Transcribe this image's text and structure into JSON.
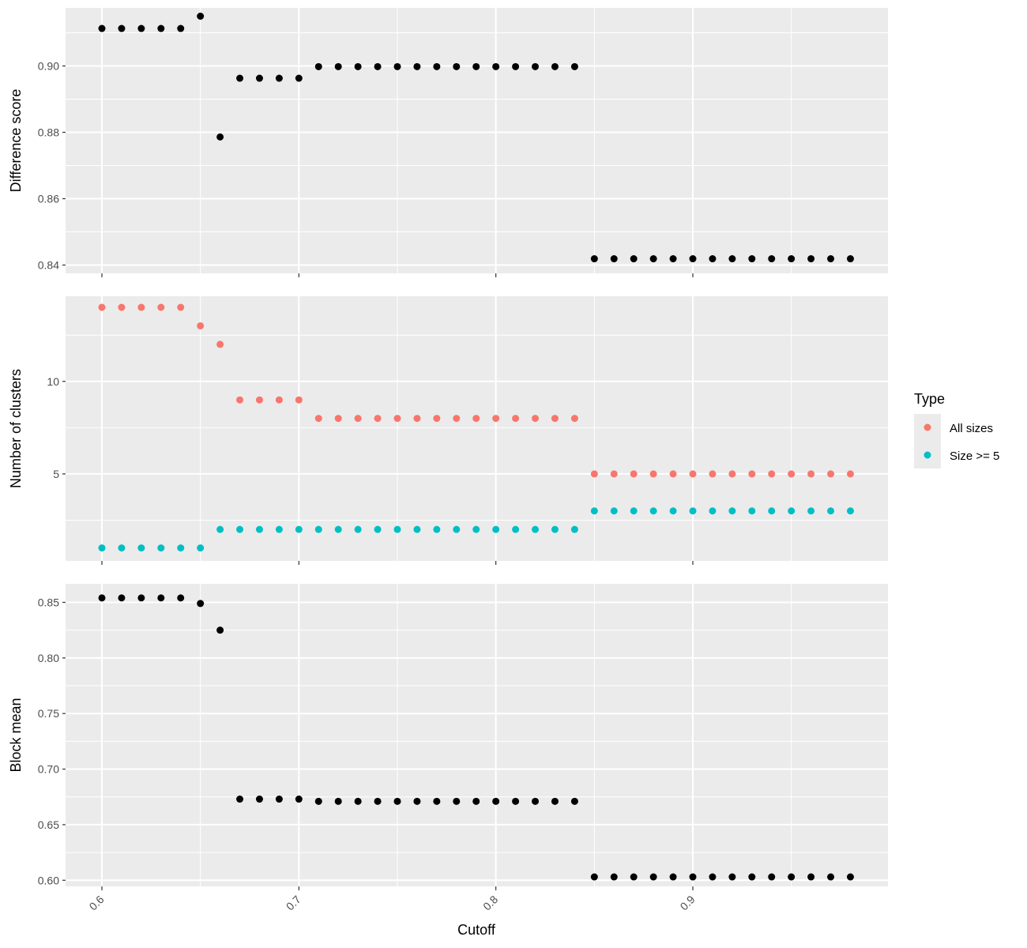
{
  "chart_data": [
    {
      "type": "scatter",
      "panel": "top",
      "ylabel": "Difference score",
      "xlim": [
        0.6,
        0.98
      ],
      "ylim": [
        0.8375,
        0.9175
      ],
      "yticks": [
        0.84,
        0.86,
        0.88,
        0.9
      ],
      "ytick_labels": [
        "0.84",
        "0.86",
        "0.88",
        "0.90"
      ],
      "series": [
        {
          "color": "#000000",
          "x": [
            0.6,
            0.61,
            0.62,
            0.63,
            0.64,
            0.65,
            0.66,
            0.67,
            0.68,
            0.69,
            0.7,
            0.71,
            0.72,
            0.73,
            0.74,
            0.75,
            0.76,
            0.77,
            0.78,
            0.79,
            0.8,
            0.81,
            0.82,
            0.83,
            0.84,
            0.85,
            0.86,
            0.87,
            0.88,
            0.89,
            0.9,
            0.91,
            0.92,
            0.93,
            0.94,
            0.95,
            0.96,
            0.97,
            0.98
          ],
          "y": [
            0.9113,
            0.9113,
            0.9113,
            0.9113,
            0.9113,
            0.915,
            0.8786,
            0.8963,
            0.8963,
            0.8963,
            0.8963,
            0.8998,
            0.8998,
            0.8998,
            0.8998,
            0.8998,
            0.8998,
            0.8998,
            0.8998,
            0.8998,
            0.8998,
            0.8998,
            0.8998,
            0.8998,
            0.8998,
            0.8419,
            0.8419,
            0.8419,
            0.8419,
            0.8419,
            0.8419,
            0.8419,
            0.8419,
            0.8419,
            0.8419,
            0.8419,
            0.8419,
            0.8419,
            0.8419
          ]
        }
      ]
    },
    {
      "type": "scatter",
      "panel": "middle",
      "ylabel": "Number of clusters",
      "xlim": [
        0.6,
        0.98
      ],
      "ylim": [
        0.3,
        14.6
      ],
      "yticks": [
        5,
        10
      ],
      "ytick_labels": [
        "5",
        "10"
      ],
      "series": [
        {
          "name": "All sizes",
          "color": "#F8766D",
          "x": [
            0.6,
            0.61,
            0.62,
            0.63,
            0.64,
            0.65,
            0.66,
            0.67,
            0.68,
            0.69,
            0.7,
            0.71,
            0.72,
            0.73,
            0.74,
            0.75,
            0.76,
            0.77,
            0.78,
            0.79,
            0.8,
            0.81,
            0.82,
            0.83,
            0.84,
            0.85,
            0.86,
            0.87,
            0.88,
            0.89,
            0.9,
            0.91,
            0.92,
            0.93,
            0.94,
            0.95,
            0.96,
            0.97,
            0.98
          ],
          "y": [
            14,
            14,
            14,
            14,
            14,
            13,
            12,
            9,
            9,
            9,
            9,
            8,
            8,
            8,
            8,
            8,
            8,
            8,
            8,
            8,
            8,
            8,
            8,
            8,
            8,
            5,
            5,
            5,
            5,
            5,
            5,
            5,
            5,
            5,
            5,
            5,
            5,
            5,
            5
          ]
        },
        {
          "name": "Size >= 5",
          "color": "#00BFC4",
          "x": [
            0.6,
            0.61,
            0.62,
            0.63,
            0.64,
            0.65,
            0.66,
            0.67,
            0.68,
            0.69,
            0.7,
            0.71,
            0.72,
            0.73,
            0.74,
            0.75,
            0.76,
            0.77,
            0.78,
            0.79,
            0.8,
            0.81,
            0.82,
            0.83,
            0.84,
            0.85,
            0.86,
            0.87,
            0.88,
            0.89,
            0.9,
            0.91,
            0.92,
            0.93,
            0.94,
            0.95,
            0.96,
            0.97,
            0.98
          ],
          "y": [
            1,
            1,
            1,
            1,
            1,
            1,
            2,
            2,
            2,
            2,
            2,
            2,
            2,
            2,
            2,
            2,
            2,
            2,
            2,
            2,
            2,
            2,
            2,
            2,
            2,
            3,
            3,
            3,
            3,
            3,
            3,
            3,
            3,
            3,
            3,
            3,
            3,
            3,
            3
          ]
        }
      ]
    },
    {
      "type": "scatter",
      "panel": "bottom",
      "ylabel": "Block mean",
      "xlabel": "Cutoff",
      "xlim": [
        0.6,
        0.98
      ],
      "ylim": [
        0.5945,
        0.8667
      ],
      "yticks": [
        0.6,
        0.65,
        0.7,
        0.75,
        0.8,
        0.85
      ],
      "ytick_labels": [
        "0.60",
        "0.65",
        "0.70",
        "0.75",
        "0.80",
        "0.85"
      ],
      "xticks": [
        0.6,
        0.7,
        0.8,
        0.9
      ],
      "xtick_labels": [
        "0.6",
        "0.7",
        "0.8",
        "0.9"
      ],
      "series": [
        {
          "color": "#000000",
          "x": [
            0.6,
            0.61,
            0.62,
            0.63,
            0.64,
            0.65,
            0.66,
            0.67,
            0.68,
            0.69,
            0.7,
            0.71,
            0.72,
            0.73,
            0.74,
            0.75,
            0.76,
            0.77,
            0.78,
            0.79,
            0.8,
            0.81,
            0.82,
            0.83,
            0.84,
            0.85,
            0.86,
            0.87,
            0.88,
            0.89,
            0.9,
            0.91,
            0.92,
            0.93,
            0.94,
            0.95,
            0.96,
            0.97,
            0.98
          ],
          "y": [
            0.854,
            0.854,
            0.854,
            0.854,
            0.854,
            0.849,
            0.825,
            0.673,
            0.673,
            0.673,
            0.673,
            0.671,
            0.671,
            0.671,
            0.671,
            0.671,
            0.671,
            0.671,
            0.671,
            0.671,
            0.671,
            0.671,
            0.671,
            0.671,
            0.671,
            0.603,
            0.603,
            0.603,
            0.603,
            0.603,
            0.603,
            0.603,
            0.603,
            0.603,
            0.603,
            0.603,
            0.603,
            0.603,
            0.603
          ]
        }
      ]
    }
  ],
  "legend": {
    "title": "Type",
    "placement": "right",
    "items": [
      {
        "label": "All sizes",
        "color": "#F8766D"
      },
      {
        "label": "Size >= 5",
        "color": "#00BFC4"
      }
    ]
  },
  "style": {
    "panel_background": "#EBEBEB",
    "grid_color": "#FFFFFF",
    "point_color_default": "#000000"
  }
}
